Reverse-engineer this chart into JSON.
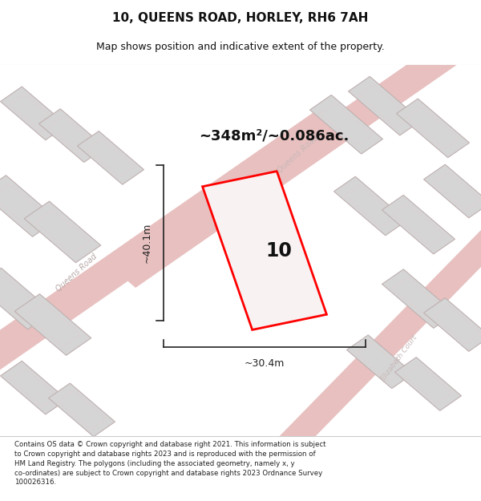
{
  "title": "10, QUEENS ROAD, HORLEY, RH6 7AH",
  "subtitle": "Map shows position and indicative extent of the property.",
  "area_text": "~348m²/~0.086ac.",
  "label_10": "10",
  "dim_height": "~40.1m",
  "dim_width": "~30.4m",
  "footer_lines": [
    "Contains OS data © Crown copyright and database right 2021. This information is subject",
    "to Crown copyright and database rights 2023 and is reproduced with the permission of",
    "HM Land Registry. The polygons (including the associated geometry, namely x, y",
    "co-ordinates) are subject to Crown copyright and database rights 2023 Ordnance Survey",
    "100026316."
  ],
  "map_bg": "#eeecec",
  "building_fill": "#d5d5d5",
  "building_edge": "#c0b0b0",
  "building_inner_edge": "#e0d0d0",
  "road_color": "#e8c0c0",
  "property_color": "#ff0000",
  "property_fill": "#f8f2f2",
  "dim_color": "#222222",
  "title_color": "#111111",
  "road_label_color": "#b8a8a8",
  "white": "#ffffff"
}
